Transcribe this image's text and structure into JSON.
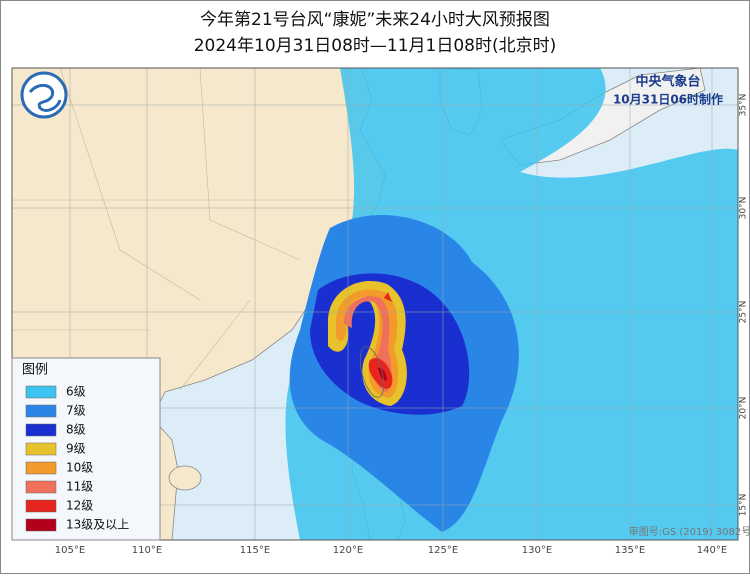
{
  "title": {
    "line1": "今年第21号台风“康妮”未来24小时大风预报图",
    "line2": "2024年10月31日08时—11月1日08时(北京时)"
  },
  "agency": {
    "name": "中央气象台",
    "issued": "10月31日06时制作"
  },
  "legend": {
    "title": "图例",
    "items": [
      {
        "label": "6级",
        "color": "#3cc3ef"
      },
      {
        "label": "7级",
        "color": "#2a86e6"
      },
      {
        "label": "8级",
        "color": "#1a2fd0"
      },
      {
        "label": "9级",
        "color": "#e8c22a"
      },
      {
        "label": "10级",
        "color": "#f29a2a"
      },
      {
        "label": "11级",
        "color": "#f0705c"
      },
      {
        "label": "12级",
        "color": "#e6261e"
      },
      {
        "label": "13级及以上",
        "color": "#b3001b"
      }
    ]
  },
  "lon_labels": [
    "105°E",
    "110°E",
    "115°E",
    "120°E",
    "125°E",
    "130°E",
    "135°E",
    "140°E"
  ],
  "lat_labels": [
    "35°N",
    "30°N",
    "25°N",
    "20°N",
    "15°N"
  ],
  "footnote": "审图号:GS (2019) 3082号"
}
